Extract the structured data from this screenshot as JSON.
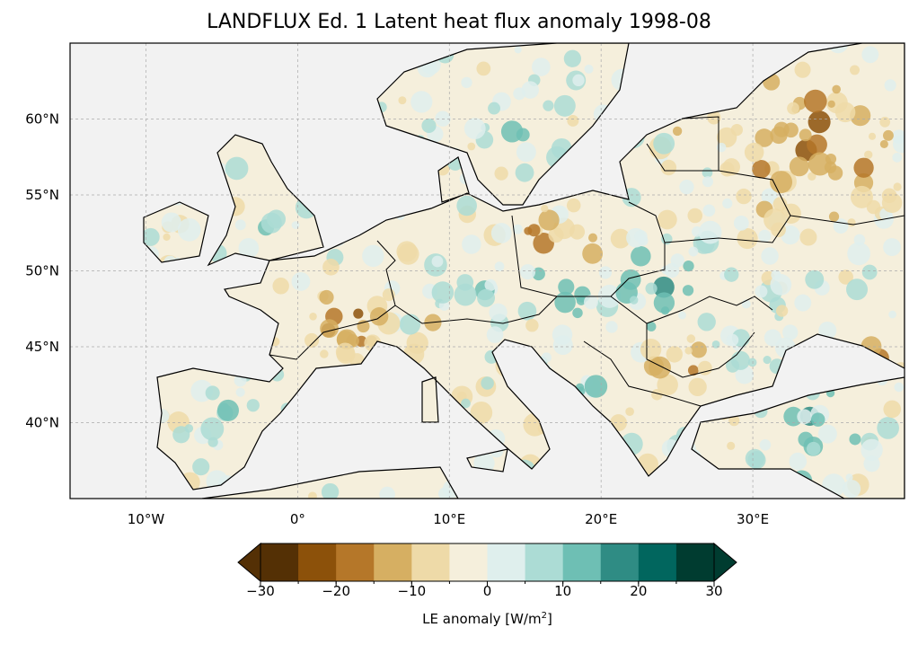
{
  "title": "LANDFLUX Ed. 1 Latent heat flux anomaly 1998-08",
  "map": {
    "extent_lon": [
      -15,
      40
    ],
    "extent_lat": [
      35,
      65
    ],
    "lon_ticks": [
      {
        "value": -10,
        "label": "10°W"
      },
      {
        "value": 0,
        "label": "0°"
      },
      {
        "value": 10,
        "label": "10°E"
      },
      {
        "value": 20,
        "label": "20°E"
      },
      {
        "value": 30,
        "label": "30°E"
      }
    ],
    "lat_ticks": [
      {
        "value": 60,
        "label": "60°N"
      },
      {
        "value": 55,
        "label": "55°N"
      },
      {
        "value": 50,
        "label": "50°N"
      },
      {
        "value": 45,
        "label": "45°N"
      },
      {
        "value": 40,
        "label": "40°N"
      }
    ],
    "ocean_color": "#f2f2f2"
  },
  "colorbar": {
    "label_prefix": "LE anomaly [W/m",
    "label_sup": "2",
    "label_suffix": "]",
    "levels": [
      -30,
      -25,
      -20,
      -15,
      -10,
      -5,
      0,
      5,
      10,
      15,
      20,
      25,
      30
    ],
    "colors": [
      "#543005",
      "#8c510a",
      "#b57729",
      "#d6af62",
      "#eedaa8",
      "#f5efdc",
      "#dfefed",
      "#acdcd5",
      "#6ebfb4",
      "#2f8c84",
      "#01665e",
      "#003c30"
    ],
    "extend": "both",
    "ticks": [
      {
        "value": -30,
        "label": "−30"
      },
      {
        "value": -20,
        "label": "−20"
      },
      {
        "value": -10,
        "label": "−10"
      },
      {
        "value": 0,
        "label": "0"
      },
      {
        "value": 10,
        "label": "10"
      },
      {
        "value": 20,
        "label": "20"
      },
      {
        "value": 30,
        "label": "30"
      }
    ]
  }
}
